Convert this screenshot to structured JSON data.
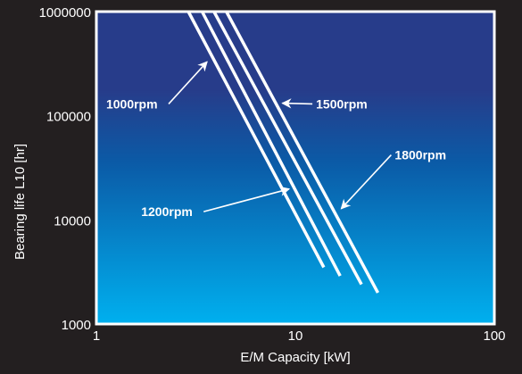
{
  "chart_data": {
    "type": "line",
    "title": "",
    "xlabel": "E/M Capacity [kW]",
    "ylabel": "Bearing life L10 [hr]",
    "xscale": "log",
    "yscale": "log",
    "xlim": [
      1,
      100
    ],
    "ylim": [
      1000,
      1000000
    ],
    "xticks": [
      "1",
      "10",
      "100"
    ],
    "yticks": [
      "1000",
      "10000",
      "100000",
      "1000000"
    ],
    "grid": false,
    "legend": "none",
    "colors": {
      "background": "#231f20",
      "plot_top": "#273c8a",
      "plot_mid": "#0b5aa6",
      "plot_bottom": "#00b0ef",
      "line": "#ffffff",
      "text": "#ffffff"
    },
    "series": [
      {
        "name": "1000rpm",
        "x": [
          2.9,
          13.9
        ],
        "y": [
          1000000,
          3500
        ]
      },
      {
        "name": "1200rpm",
        "x": [
          3.4,
          16.8
        ],
        "y": [
          1000000,
          2900
        ]
      },
      {
        "name": "1500rpm",
        "x": [
          3.9,
          21.5
        ],
        "y": [
          1000000,
          2400
        ]
      },
      {
        "name": "1800rpm",
        "x": [
          4.5,
          26.0
        ],
        "y": [
          1000000,
          2000
        ]
      }
    ],
    "annotations": [
      {
        "series": "1000rpm",
        "label": "1000rpm",
        "label_at": [
          1.12,
          130000
        ],
        "arrow_to": [
          3.6,
          330000
        ]
      },
      {
        "series": "1200rpm",
        "label": "1200rpm",
        "label_at": [
          1.68,
          12000
        ],
        "arrow_to": [
          9.3,
          19800
        ]
      },
      {
        "series": "1500rpm",
        "label": "1500rpm",
        "label_at": [
          12.7,
          130000
        ],
        "arrow_to": [
          8.6,
          132000
        ]
      },
      {
        "series": "1800rpm",
        "label": "1800rpm",
        "label_at": [
          31.6,
          42000
        ],
        "arrow_to": [
          17.0,
          12800
        ]
      }
    ]
  }
}
